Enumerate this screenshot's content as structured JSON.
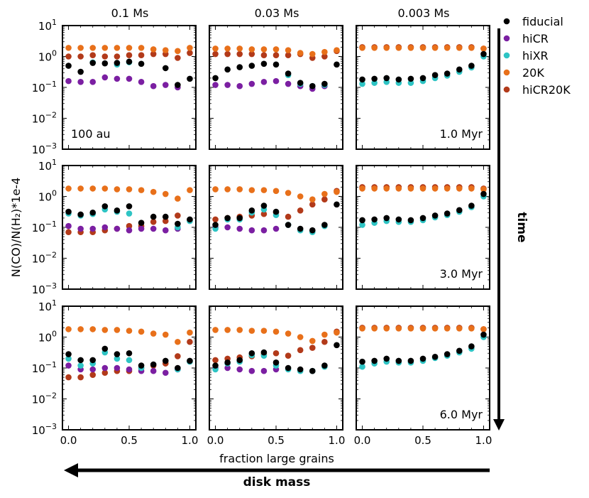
{
  "chart_data": {
    "type": "scatter",
    "yscale": "log",
    "ylabel": "N(CO)/N(H₂)*1e-4",
    "xlabel": "fraction large grains",
    "xlim": [
      -0.05,
      1.05
    ],
    "ylim": [
      0.001,
      10
    ],
    "x_ticks": [
      "0.0",
      "0.5",
      "1.0"
    ],
    "y_ticks": [
      {
        "base": "10",
        "exp": "1"
      },
      {
        "base": "10",
        "exp": "0"
      },
      {
        "base": "10",
        "exp": "−1"
      },
      {
        "base": "10",
        "exp": "−2"
      },
      {
        "base": "10",
        "exp": "−3"
      }
    ],
    "column_titles": [
      "0.1 Ms",
      "0.03 Ms",
      "0.003 Ms"
    ],
    "row_labels": [
      "1.0 Myr",
      "3.0 Myr",
      "6.0 Myr"
    ],
    "panel_annotation": "100 au",
    "axis_arrows": {
      "vertical": "time",
      "horizontal": "disk mass"
    },
    "legend_position": "right",
    "legend": [
      {
        "name": "fiducial",
        "color": "#000000"
      },
      {
        "name": "hiCR",
        "color": "#7b1fa2"
      },
      {
        "name": "hiXR",
        "color": "#2ec4c4"
      },
      {
        "name": "20K",
        "color": "#e8701a"
      },
      {
        "name": "hiCR20K",
        "color": "#b23a1a"
      }
    ],
    "x": [
      0.0,
      0.1,
      0.2,
      0.3,
      0.4,
      0.5,
      0.6,
      0.7,
      0.8,
      0.9,
      1.0
    ],
    "panels": [
      {
        "row": 0,
        "col": 0,
        "series": {
          "fiducial": [
            0.5,
            0.32,
            0.62,
            0.6,
            0.62,
            0.68,
            0.58,
            null,
            0.42,
            0.12,
            0.19
          ],
          "hiCR": [
            0.16,
            0.15,
            0.15,
            0.21,
            0.19,
            0.19,
            0.15,
            0.11,
            0.12,
            0.1,
            null
          ],
          "hiXR": [
            null,
            null,
            0.64,
            null,
            0.55,
            0.65,
            null,
            null,
            null,
            null,
            null
          ],
          "20K": [
            1.9,
            1.9,
            1.9,
            1.9,
            1.9,
            1.9,
            1.9,
            1.7,
            1.6,
            1.5,
            1.9
          ],
          "hiCR20K": [
            1.0,
            1.0,
            1.1,
            1.0,
            1.0,
            1.1,
            1.1,
            1.2,
            1.2,
            0.9,
            1.3
          ]
        }
      },
      {
        "row": 0,
        "col": 1,
        "series": {
          "fiducial": [
            0.2,
            0.38,
            0.45,
            0.5,
            0.58,
            0.55,
            0.28,
            0.14,
            0.11,
            0.13,
            0.55
          ],
          "hiCR": [
            0.12,
            0.12,
            0.11,
            0.13,
            0.15,
            0.16,
            0.13,
            0.11,
            0.09,
            0.11,
            null
          ],
          "hiXR": [
            null,
            null,
            null,
            null,
            null,
            null,
            0.25,
            0.13,
            0.11,
            0.12,
            null
          ],
          "20K": [
            1.8,
            1.8,
            1.8,
            1.7,
            1.7,
            1.7,
            1.6,
            1.3,
            1.2,
            1.4,
            1.6
          ],
          "hiCR20K": [
            1.2,
            1.2,
            1.2,
            1.2,
            1.1,
            1.1,
            1.1,
            1.2,
            0.9,
            1.0,
            1.5
          ]
        }
      },
      {
        "row": 0,
        "col": 2,
        "series": {
          "fiducial": [
            0.18,
            0.19,
            0.2,
            0.18,
            0.19,
            0.2,
            0.25,
            0.28,
            0.38,
            0.5,
            1.2
          ],
          "hiCR": [
            null,
            null,
            null,
            null,
            null,
            null,
            null,
            null,
            null,
            null,
            null
          ],
          "hiXR": [
            0.13,
            0.14,
            0.15,
            0.14,
            0.14,
            0.16,
            0.2,
            0.24,
            0.32,
            0.44,
            1.0
          ],
          "20K": [
            1.9,
            1.9,
            1.9,
            1.9,
            1.9,
            1.9,
            1.9,
            1.9,
            1.9,
            1.9,
            1.8
          ],
          "hiCR20K": [
            2.0,
            2.0,
            2.0,
            2.0,
            2.0,
            2.0,
            2.0,
            2.0,
            2.0,
            2.0,
            1.8
          ]
        }
      },
      {
        "row": 1,
        "col": 0,
        "series": {
          "fiducial": [
            0.32,
            0.26,
            0.3,
            0.48,
            0.35,
            0.48,
            0.14,
            0.22,
            0.22,
            0.13,
            0.18
          ],
          "hiCR": [
            0.11,
            0.09,
            0.09,
            0.1,
            0.09,
            0.08,
            0.09,
            0.09,
            0.08,
            0.09,
            null
          ],
          "hiXR": [
            0.28,
            0.24,
            0.27,
            0.38,
            0.32,
            0.28,
            null,
            null,
            null,
            0.1,
            0.16
          ],
          "20K": [
            1.8,
            1.8,
            1.8,
            1.8,
            1.7,
            1.7,
            1.6,
            1.4,
            1.2,
            0.85,
            1.6
          ],
          "hiCR20K": [
            0.07,
            0.07,
            0.07,
            0.08,
            0.09,
            0.11,
            0.11,
            0.15,
            0.16,
            0.24,
            0.17
          ]
        }
      },
      {
        "row": 1,
        "col": 1,
        "series": {
          "fiducial": [
            0.12,
            0.2,
            0.2,
            0.35,
            0.5,
            0.32,
            0.12,
            0.09,
            0.08,
            0.12,
            0.55
          ],
          "hiCR": [
            0.1,
            0.1,
            0.09,
            0.08,
            0.08,
            0.09,
            null,
            null,
            null,
            null,
            null
          ],
          "hiXR": [
            0.09,
            0.18,
            0.18,
            0.3,
            0.38,
            0.25,
            0.12,
            0.08,
            0.07,
            0.11,
            null
          ],
          "20K": [
            1.7,
            1.7,
            1.7,
            1.6,
            1.6,
            1.5,
            1.3,
            1.0,
            0.8,
            1.2,
            1.4
          ],
          "hiCR20K": [
            0.18,
            0.2,
            0.22,
            0.24,
            0.27,
            0.3,
            0.22,
            0.35,
            0.55,
            0.8,
            1.5
          ]
        }
      },
      {
        "row": 1,
        "col": 2,
        "series": {
          "fiducial": [
            0.17,
            0.18,
            0.2,
            0.18,
            0.17,
            0.2,
            0.24,
            0.28,
            0.36,
            0.5,
            1.2
          ],
          "hiCR": [
            null,
            null,
            null,
            null,
            null,
            null,
            null,
            null,
            null,
            null,
            null
          ],
          "hiXR": [
            0.12,
            0.14,
            0.16,
            0.15,
            0.15,
            0.17,
            0.21,
            0.25,
            0.32,
            0.45,
            1.0
          ],
          "20K": [
            1.8,
            1.8,
            1.8,
            1.8,
            1.8,
            1.8,
            1.8,
            1.8,
            1.8,
            1.8,
            1.7
          ],
          "hiCR20K": [
            2.0,
            2.0,
            2.0,
            2.0,
            2.0,
            2.0,
            2.0,
            2.0,
            2.0,
            2.0,
            1.8
          ]
        }
      },
      {
        "row": 2,
        "col": 0,
        "series": {
          "fiducial": [
            0.28,
            0.18,
            0.18,
            0.42,
            0.28,
            0.3,
            0.12,
            0.13,
            0.17,
            0.1,
            0.17
          ],
          "hiCR": [
            0.12,
            0.09,
            0.09,
            0.1,
            0.1,
            0.09,
            0.08,
            0.08,
            0.07,
            0.09,
            null
          ],
          "hiXR": [
            0.2,
            0.12,
            0.14,
            0.32,
            0.2,
            0.18,
            0.1,
            null,
            null,
            0.09,
            0.16
          ],
          "20K": [
            1.8,
            1.8,
            1.8,
            1.7,
            1.7,
            1.6,
            1.5,
            1.3,
            1.2,
            0.7,
            1.4
          ],
          "hiCR20K": [
            0.05,
            0.05,
            0.06,
            0.07,
            0.08,
            0.08,
            0.1,
            0.12,
            0.14,
            0.24,
            0.7
          ]
        }
      },
      {
        "row": 2,
        "col": 1,
        "series": {
          "fiducial": [
            0.12,
            0.15,
            0.18,
            0.3,
            0.32,
            0.15,
            0.1,
            0.09,
            0.08,
            0.12,
            0.55
          ],
          "hiCR": [
            0.1,
            0.1,
            0.09,
            0.08,
            0.08,
            0.09,
            null,
            null,
            null,
            null,
            null
          ],
          "hiXR": [
            0.09,
            0.14,
            0.16,
            0.26,
            0.25,
            0.12,
            0.09,
            0.08,
            0.08,
            0.11,
            null
          ],
          "20K": [
            1.7,
            1.7,
            1.7,
            1.6,
            1.6,
            1.5,
            1.3,
            1.0,
            0.75,
            1.2,
            1.4
          ],
          "hiCR20K": [
            0.18,
            0.2,
            0.22,
            0.24,
            0.28,
            0.3,
            0.25,
            0.38,
            0.45,
            0.7,
            1.5
          ]
        }
      },
      {
        "row": 2,
        "col": 2,
        "series": {
          "fiducial": [
            0.16,
            0.17,
            0.2,
            0.17,
            0.17,
            0.2,
            0.23,
            0.28,
            0.36,
            0.5,
            1.2
          ],
          "hiCR": [
            null,
            null,
            null,
            null,
            null,
            null,
            null,
            null,
            null,
            null,
            null
          ],
          "hiXR": [
            0.11,
            0.14,
            0.16,
            0.15,
            0.15,
            0.17,
            0.21,
            0.25,
            0.32,
            0.42,
            1.0
          ],
          "20K": [
            1.9,
            1.9,
            1.9,
            1.9,
            1.9,
            1.9,
            1.9,
            1.9,
            1.9,
            1.9,
            1.8
          ],
          "hiCR20K": [
            2.0,
            2.0,
            2.0,
            2.0,
            2.0,
            2.0,
            2.0,
            2.0,
            2.0,
            2.0,
            1.8
          ]
        }
      }
    ]
  }
}
